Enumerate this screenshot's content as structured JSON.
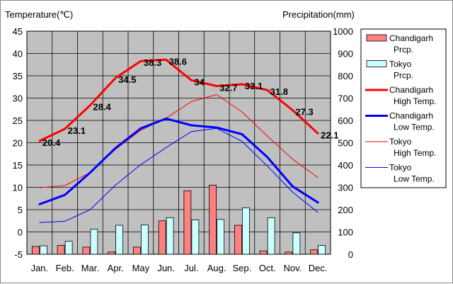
{
  "chart_data": {
    "type": "bar",
    "y_left_label": "Temperature(℃)",
    "y_right_label": "Precipitation(mm)",
    "y_left_range": [
      -5,
      45
    ],
    "y_left_ticks": [
      45,
      40,
      35,
      30,
      25,
      20,
      15,
      10,
      5,
      0,
      -5
    ],
    "y_right_range": [
      0,
      1000
    ],
    "y_right_ticks": [
      1000,
      900,
      800,
      700,
      600,
      500,
      400,
      300,
      200,
      100,
      0
    ],
    "categories": [
      "Jan.",
      "Feb.",
      "Mar.",
      "Apr.",
      "May",
      "Jun.",
      "Jul.",
      "Aug.",
      "Sep.",
      "Oct.",
      "Nov.",
      "Dec."
    ],
    "grid": true,
    "legend_position": "right",
    "plot_background": "#c0c0c0",
    "series": [
      {
        "name": "Chandigarh Prcp.",
        "kind": "bar",
        "axis": "right",
        "color": "#ff8080",
        "values": [
          35,
          40,
          32,
          10,
          32,
          150,
          285,
          310,
          130,
          15,
          10,
          20
        ]
      },
      {
        "name": "Tokyo Prcp.",
        "kind": "bar",
        "axis": "right",
        "color": "#ccffff",
        "values": [
          38,
          58,
          112,
          130,
          131,
          164,
          154,
          156,
          208,
          164,
          96,
          40
        ]
      },
      {
        "name": "Chandigarh High Temp.",
        "kind": "line",
        "axis": "left",
        "color": "#ff0000",
        "width": 3,
        "values": [
          20.4,
          23.1,
          28.4,
          34.5,
          38.3,
          38.6,
          34,
          32.7,
          33.1,
          31.8,
          27.3,
          22.1
        ],
        "labels": [
          "20.4",
          "23.1",
          "28.4",
          "34.5",
          "38.3",
          "38.6",
          "34",
          "32.7",
          "33.1",
          "31.8",
          "27.3",
          "22.1"
        ]
      },
      {
        "name": "Chandigarh Low Temp.",
        "kind": "line",
        "axis": "left",
        "color": "#0000ff",
        "width": 3,
        "values": [
          6.2,
          8.3,
          13.3,
          18.8,
          23.2,
          25.4,
          23.9,
          23.4,
          21.9,
          16.8,
          10.2,
          6.6
        ]
      },
      {
        "name": "Tokyo High Temp.",
        "kind": "line",
        "axis": "left",
        "color": "#ff0000",
        "width": 1,
        "values": [
          9.9,
          10.4,
          13.3,
          18.5,
          22.8,
          25.5,
          29.2,
          30.8,
          26.9,
          21.5,
          16.3,
          12.2
        ]
      },
      {
        "name": "Tokyo Low Temp.",
        "kind": "line",
        "axis": "left",
        "color": "#0000ff",
        "width": 1,
        "values": [
          2.1,
          2.4,
          5.0,
          10.5,
          15.1,
          18.9,
          22.5,
          23.2,
          20.3,
          14.8,
          8.9,
          4.4
        ]
      }
    ],
    "legend": [
      {
        "line1": "Chandigarh",
        "line2": "Prcp.",
        "symbol": "bar",
        "color": "#ff8080"
      },
      {
        "line1": "Tokyo",
        "line2": "Prcp.",
        "symbol": "bar",
        "color": "#ccffff"
      },
      {
        "line1": "Chandigarh",
        "line2": "High Temp.",
        "symbol": "line",
        "color": "#ff0000",
        "width": 3
      },
      {
        "line1": "Chandigarh",
        "line2": "Low Temp.",
        "symbol": "line",
        "color": "#0000ff",
        "width": 3
      },
      {
        "line1": "Tokyo",
        "line2": "High Temp.",
        "symbol": "line",
        "color": "#ff0000",
        "width": 1
      },
      {
        "line1": "Tokyo",
        "line2": "Low Temp.",
        "symbol": "line",
        "color": "#0000ff",
        "width": 1
      }
    ]
  }
}
